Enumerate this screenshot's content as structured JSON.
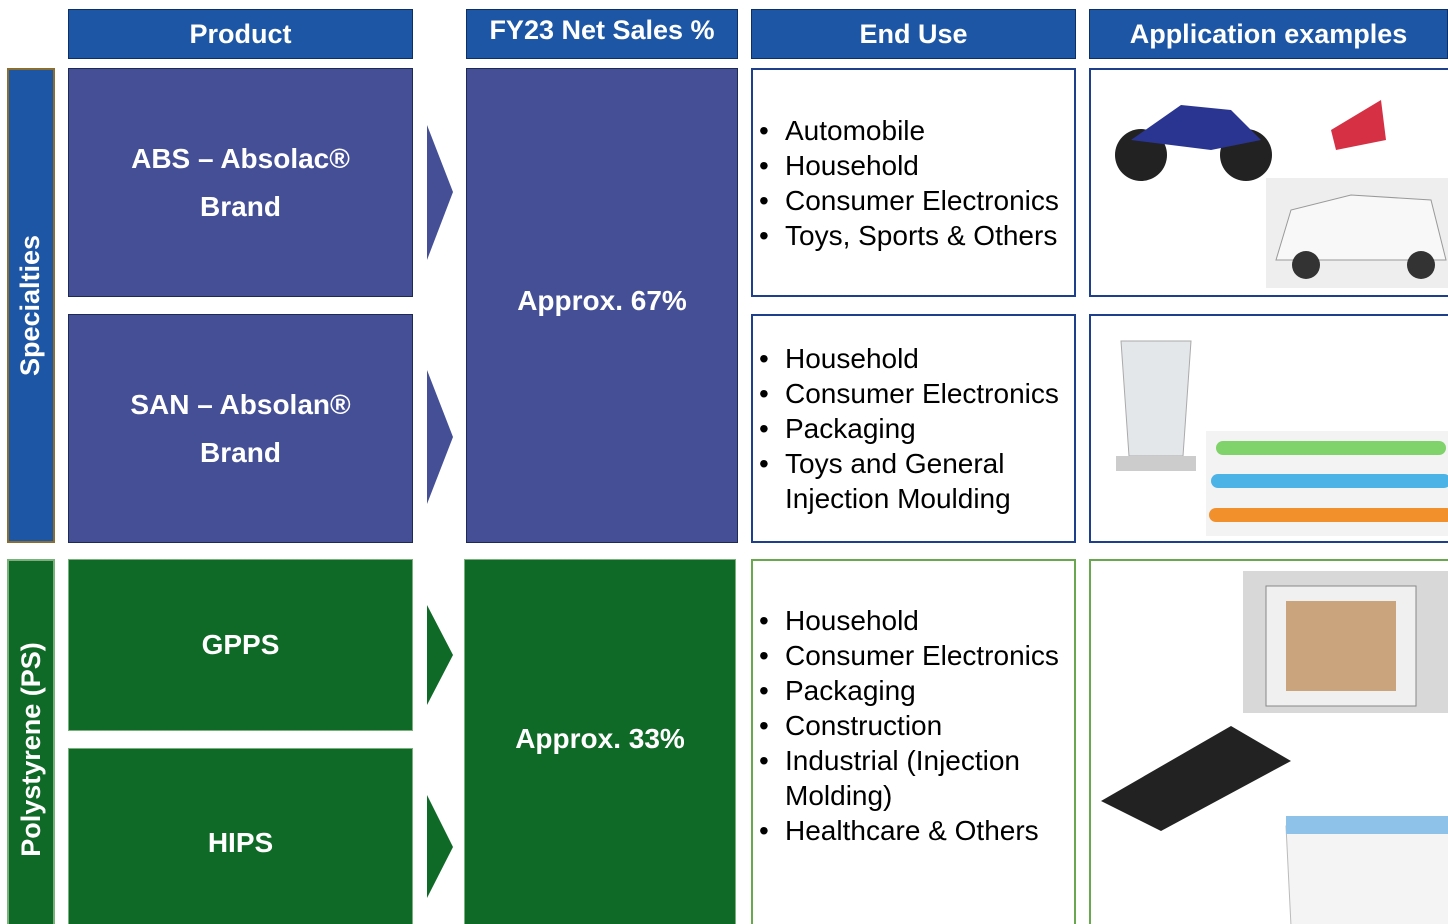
{
  "header": {
    "product": "Product",
    "share": "FY23 Net Sales %",
    "end_use": "End Use",
    "applications": "Application examples"
  },
  "groups": [
    {
      "label": "Specialties",
      "share": "Approx. 67%",
      "products": [
        {
          "name": "ABS – Absolac® Brand",
          "end_uses": [
            "Automobile",
            "Household",
            "Consumer Electronics",
            "Toys, Sports & Others"
          ]
        },
        {
          "name": "SAN – Absolan® Brand",
          "end_uses": [
            "Household",
            "Consumer Electronics",
            "Packaging",
            "Toys and General Injection Moulding"
          ]
        }
      ]
    },
    {
      "label": "Polystyrene (PS)",
      "share": "Approx. 33%",
      "products": [
        {
          "name": "GPPS"
        },
        {
          "name": "HIPS"
        }
      ],
      "end_uses": [
        "Household",
        "Consumer Electronics",
        "Packaging",
        "Construction",
        "Industrial (Injection Molding)",
        "Healthcare & Others"
      ]
    }
  ]
}
